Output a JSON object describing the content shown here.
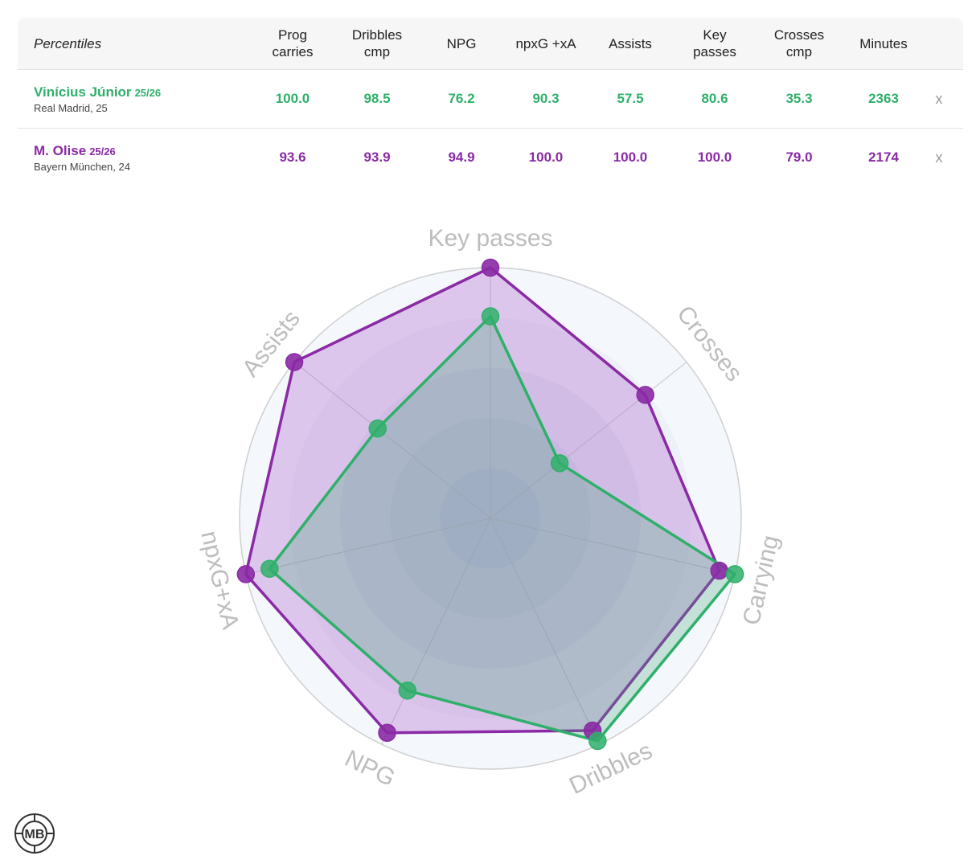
{
  "table": {
    "header_first": "Percentiles",
    "columns": [
      "Prog\ncarries",
      "Dribbles\ncmp",
      "NPG",
      "npxG +xA",
      "Assists",
      "Key\npasses",
      "Crosses\ncmp",
      "Minutes"
    ],
    "close_symbol": "x",
    "players": [
      {
        "name": "Vinícius Júnior",
        "season": "25/26",
        "team": "Real Madrid, 25",
        "color": "#2fb06a",
        "values": [
          "100.0",
          "98.5",
          "76.2",
          "90.3",
          "57.5",
          "80.6",
          "35.3",
          "2363"
        ]
      },
      {
        "name": "M. Olise",
        "season": "25/26",
        "team": "Bayern München, 24",
        "color": "#8a2aa5",
        "values": [
          "93.6",
          "93.9",
          "94.9",
          "100.0",
          "100.0",
          "100.0",
          "79.0",
          "2174"
        ]
      }
    ]
  },
  "chart_data": {
    "type": "radar",
    "axes": [
      "Key passes",
      "Crosses",
      "Carrying",
      "Dribbles",
      "NPG",
      "npxG+xA",
      "Assists"
    ],
    "range": [
      0,
      100
    ],
    "series": [
      {
        "name": "M. Olise",
        "color": "#8a2aa5",
        "values": [
          100.0,
          79.0,
          93.6,
          93.9,
          94.9,
          100.0,
          100.0
        ]
      },
      {
        "name": "Vinícius Júnior",
        "color": "#2fb06a",
        "values": [
          80.6,
          35.3,
          100.0,
          98.5,
          76.2,
          90.3,
          57.5
        ]
      }
    ]
  },
  "logo": {
    "text": "MB"
  }
}
